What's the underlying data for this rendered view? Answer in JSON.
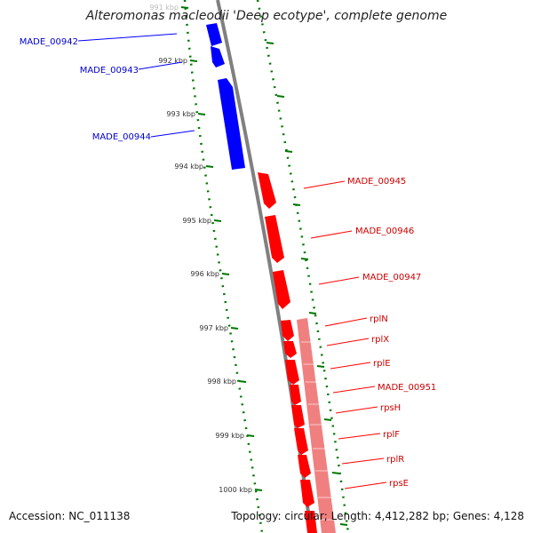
{
  "header": {
    "title": "Alteromonas macleodii 'Deep ecotype', complete genome"
  },
  "footer": {
    "accession": "Accession: NC_011138",
    "topology": "Topology: circular; Length: 4,412,282 bp; Genes: 4,128"
  },
  "colors": {
    "forward": "#0000ff",
    "reverse": "#ff0000",
    "reverse_light": "#f08080",
    "backbone": "#808080",
    "tick": "#007700"
  },
  "ruler": {
    "labels": [
      "991 kbp",
      "992 kbp",
      "993 kbp",
      "994 kbp",
      "995 kbp",
      "996 kbp",
      "997 kbp",
      "998 kbp",
      "999 kbp",
      "1000 kbp"
    ]
  },
  "genes": [
    {
      "name": "MADE_00942",
      "strand": "forward"
    },
    {
      "name": "MADE_00943",
      "strand": "forward"
    },
    {
      "name": "MADE_00944",
      "strand": "forward"
    },
    {
      "name": "MADE_00945",
      "strand": "reverse"
    },
    {
      "name": "MADE_00946",
      "strand": "reverse"
    },
    {
      "name": "MADE_00947",
      "strand": "reverse"
    },
    {
      "name": "rplN",
      "strand": "reverse"
    },
    {
      "name": "rplX",
      "strand": "reverse"
    },
    {
      "name": "rplE",
      "strand": "reverse"
    },
    {
      "name": "MADE_00951",
      "strand": "reverse"
    },
    {
      "name": "rpsH",
      "strand": "reverse"
    },
    {
      "name": "rplF",
      "strand": "reverse"
    },
    {
      "name": "rplR",
      "strand": "reverse"
    },
    {
      "name": "rpsE",
      "strand": "reverse"
    }
  ]
}
